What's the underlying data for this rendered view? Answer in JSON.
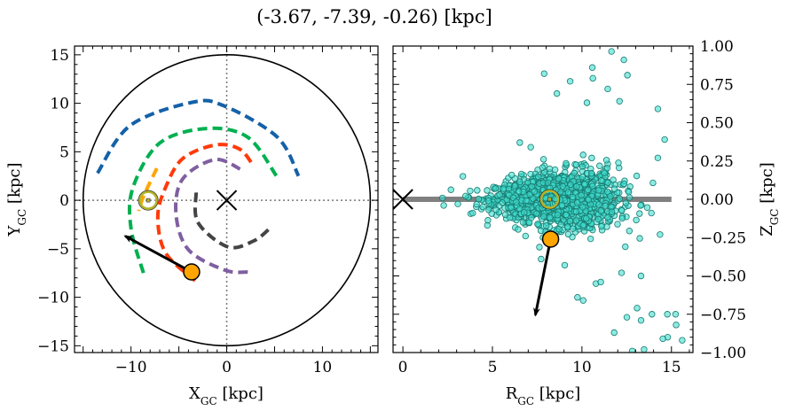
{
  "chart_data": [
    {
      "type": "line",
      "panel": "left",
      "title": "(-3.67, -7.39, -0.26) [kpc]",
      "xlabel": {
        "main": "X",
        "sub": "GC",
        "unit": " [kpc]"
      },
      "ylabel": {
        "main": "Y",
        "sub": "GC",
        "unit": " [kpc]"
      },
      "xlim": [
        -15.9,
        15.8
      ],
      "ylim": [
        -15.7,
        15.9
      ],
      "xticks": [
        -10,
        0,
        10
      ],
      "xtick_labels": [
        "−10",
        "0",
        "10"
      ],
      "yticks": [
        15,
        10,
        5,
        0,
        -5,
        -10,
        -15
      ],
      "ytick_labels": [
        "15",
        "10",
        "5",
        "0",
        "−5",
        "−10",
        "−15"
      ],
      "grid": false,
      "boundary_circle": {
        "center": [
          0,
          0
        ],
        "radius": 15,
        "color": "#000000"
      },
      "crosshair_lines": {
        "x": 0,
        "y": 0,
        "style": "dotted",
        "color": "#777777"
      },
      "galactic_center_marker": {
        "x": 0,
        "y": 0,
        "marker": "x"
      },
      "sun_marker": {
        "x": -8.2,
        "y": 0,
        "color": "#b5b52a"
      },
      "spiral_arms": [
        {
          "color": "#1461a8",
          "points": [
            [
              -13.5,
              2.8
            ],
            [
              -10.1,
              7.7
            ],
            [
              -3.6,
              10.1
            ],
            [
              -0.2,
              9.7
            ],
            [
              5.3,
              6.5
            ],
            [
              7.5,
              2.5
            ]
          ]
        },
        {
          "color": "#00b050",
          "points": [
            [
              -8.7,
              -7.5
            ],
            [
              -10,
              -2.9
            ],
            [
              -9.8,
              1.3
            ],
            [
              -7,
              5.9
            ],
            [
              -2.1,
              7.4
            ],
            [
              2.2,
              6.5
            ],
            [
              5.2,
              2.5
            ]
          ]
        },
        {
          "color": "#ff3a0a",
          "points": [
            [
              -3.3,
              -8.3
            ],
            [
              -6.4,
              -5.4
            ],
            [
              -7.2,
              -1.7
            ],
            [
              -6.4,
              1.3
            ],
            [
              -4.6,
              4.3
            ],
            [
              -1.2,
              5.7
            ],
            [
              1.3,
              5.3
            ],
            [
              2.7,
              3.7
            ]
          ]
        },
        {
          "color": "#7f5fa0",
          "points": [
            [
              2.2,
              -7.4
            ],
            [
              -0.2,
              -7.2
            ],
            [
              -4,
              -5.1
            ],
            [
              -5.3,
              -1.4
            ],
            [
              -4.6,
              2.2
            ],
            [
              -1.2,
              4.2
            ],
            [
              1.6,
              3.1
            ]
          ]
        },
        {
          "color": "#444444",
          "points": [
            [
              -3.2,
              0.8
            ],
            [
              -3,
              -2.3
            ],
            [
              0.1,
              -4.8
            ],
            [
              2.8,
              -4.2
            ],
            [
              4.5,
              -2.9
            ]
          ]
        },
        {
          "color": "#ffa500",
          "points": [
            [
              -7.3,
              3.3
            ],
            [
              -8.7,
              0.4
            ],
            [
              -9.2,
              -1.1
            ]
          ]
        }
      ],
      "target": {
        "x": -3.67,
        "y": -7.39,
        "color": "#ffa500"
      },
      "velocity_arrow": {
        "from": [
          -3.67,
          -7.39
        ],
        "to": [
          -10.6,
          -3.7
        ]
      }
    },
    {
      "type": "scatter",
      "panel": "right",
      "xlabel": {
        "main": "R",
        "sub": "GC",
        "unit": " [kpc]"
      },
      "ylabel": {
        "main": "Z",
        "sub": "GC",
        "unit": " [kpc]"
      },
      "xlim": [
        -0.55,
        16.2
      ],
      "ylim": [
        -1.0,
        1.0
      ],
      "xticks": [
        0,
        5,
        10,
        15
      ],
      "xtick_labels": [
        "0",
        "5",
        "10",
        "15"
      ],
      "yticks": [
        1.0,
        0.75,
        0.5,
        0.25,
        0.0,
        -0.25,
        -0.5,
        -0.75,
        -1.0
      ],
      "ytick_labels": [
        "1.00",
        "0.75",
        "0.50",
        "0.25",
        "0.00",
        "−0.25",
        "−0.50",
        "−0.75",
        "−1.00"
      ],
      "yaxis_side": "right",
      "grid": false,
      "disk_line": {
        "from": 0,
        "to": 15,
        "z": 0,
        "color": "#808080"
      },
      "galactic_center_marker": {
        "x": 0,
        "y": 0,
        "marker": "x"
      },
      "sun_marker": {
        "x": 8.2,
        "y": 0,
        "color": "#b5b52a"
      },
      "point_color": "#40e0d0",
      "point_edge": "#1a7a70",
      "core_distribution": {
        "count": 1400,
        "R_mean": 8.6,
        "R_sd": 1.7,
        "z_sd": 0.09
      },
      "points": [
        [
          11.65,
          0.965
        ],
        [
          12.34,
          0.91
        ],
        [
          10.58,
          0.86
        ],
        [
          7.89,
          0.82
        ],
        [
          9.34,
          0.77
        ],
        [
          10.61,
          0.79
        ],
        [
          12.54,
          0.81
        ],
        [
          8.6,
          0.69
        ],
        [
          11.44,
          0.72
        ],
        [
          12.1,
          0.64
        ],
        [
          10.28,
          0.63
        ],
        [
          14.24,
          0.59
        ],
        [
          14.62,
          0.39
        ],
        [
          14.24,
          0.27
        ],
        [
          3.35,
          0.15
        ],
        [
          2.28,
          -0.04
        ],
        [
          3.07,
          -0.03
        ],
        [
          3.9,
          -0.09
        ],
        [
          4.72,
          -0.17
        ],
        [
          13.88,
          -0.09
        ],
        [
          14.36,
          -0.23
        ],
        [
          7.72,
          -0.39
        ],
        [
          9.04,
          -0.43
        ],
        [
          9.75,
          -0.64
        ],
        [
          10.07,
          -0.66
        ],
        [
          11.8,
          -0.87
        ],
        [
          12.51,
          -0.77
        ],
        [
          13.08,
          -0.71
        ],
        [
          13.3,
          -0.79
        ],
        [
          13.91,
          -0.75
        ],
        [
          14.77,
          -0.75
        ],
        [
          15.23,
          -0.75
        ],
        [
          15.26,
          -0.82
        ],
        [
          14.79,
          -0.9
        ],
        [
          14.52,
          -0.91
        ],
        [
          15.6,
          -0.92
        ],
        [
          12.81,
          -0.99
        ],
        [
          13.47,
          -0.98
        ],
        [
          13.3,
          -0.5
        ],
        [
          12.21,
          -0.48
        ],
        [
          10.78,
          -0.55
        ],
        [
          11.05,
          -0.54
        ],
        [
          6.53,
          0.37
        ],
        [
          7.14,
          0.34
        ]
      ],
      "target": {
        "x": 8.25,
        "y": -0.26,
        "color": "#ffa500"
      },
      "velocity_arrow": {
        "from": [
          8.25,
          -0.26
        ],
        "to": [
          7.4,
          -0.755
        ]
      }
    }
  ]
}
